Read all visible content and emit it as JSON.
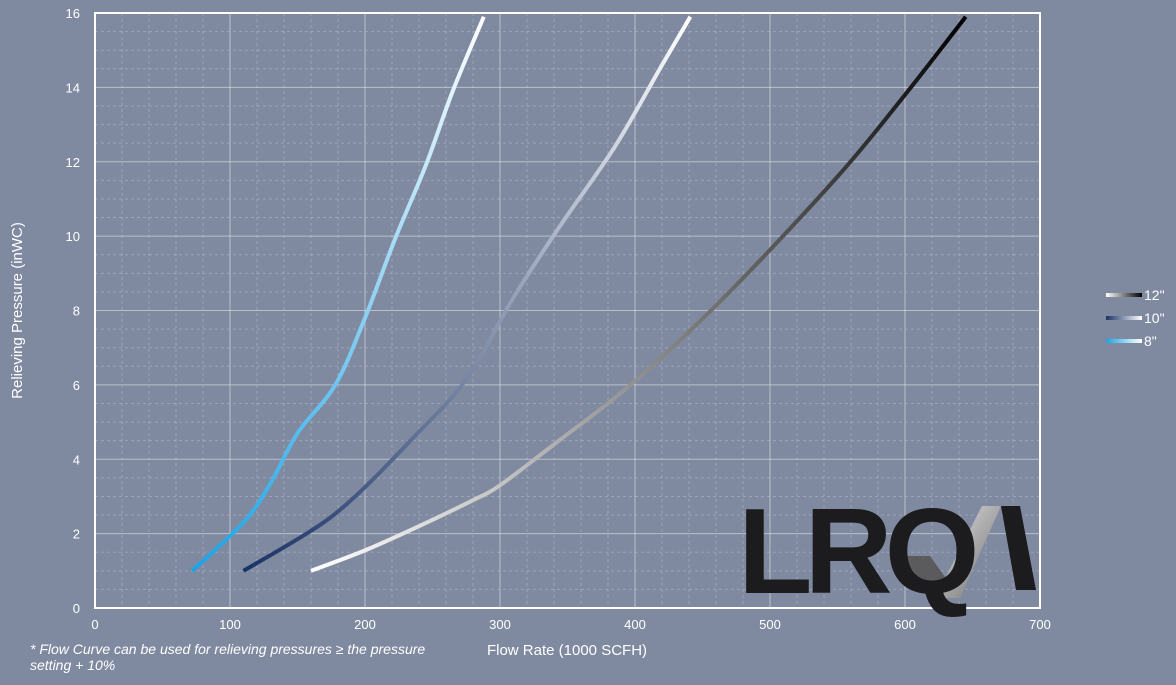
{
  "chart_data": {
    "type": "line",
    "xlabel": "Flow Rate (1000 SCFH)",
    "ylabel": "Relieving Pressure (inWC)",
    "xlim": [
      0,
      700
    ],
    "ylim": [
      0,
      16
    ],
    "xticks": [
      0,
      100,
      200,
      300,
      400,
      500,
      600,
      700
    ],
    "yticks": [
      0,
      2,
      4,
      6,
      8,
      10,
      12,
      14,
      16
    ],
    "grid": "major and minor, dashed",
    "legend": "right",
    "note": "* Flow Curve can be used for relieving pressures ≥ the pressure setting + 10%",
    "series": [
      {
        "name": "12\"",
        "gradient": [
          "#ffffff",
          "#000000"
        ],
        "x": [
          160,
          200,
          240,
          280,
          300,
          340,
          400,
          470,
          550,
          600,
          645
        ],
        "y": [
          1.0,
          1.55,
          2.2,
          2.9,
          3.3,
          4.4,
          6.1,
          8.5,
          11.6,
          13.8,
          15.9
        ]
      },
      {
        "name": "10\"",
        "gradient": [
          "#1a3366",
          "#ffffff"
        ],
        "x": [
          110,
          150,
          175,
          200,
          235,
          275,
          310,
          345,
          385,
          420,
          441
        ],
        "y": [
          1.0,
          1.85,
          2.45,
          3.25,
          4.55,
          6.15,
          8.35,
          10.3,
          12.4,
          14.6,
          15.9
        ]
      },
      {
        "name": "8\"",
        "gradient": [
          "#1aa3e6",
          "#ffffff"
        ],
        "x": [
          72,
          110,
          130,
          150,
          178,
          200,
          222,
          245,
          265,
          288
        ],
        "y": [
          1.0,
          2.3,
          3.35,
          4.7,
          6.0,
          7.8,
          9.9,
          11.9,
          13.9,
          15.9
        ]
      }
    ]
  },
  "logo": {
    "text": "LRQA",
    "mark_colors": [
      "#e8e8e8",
      "#6a6a6a"
    ]
  }
}
